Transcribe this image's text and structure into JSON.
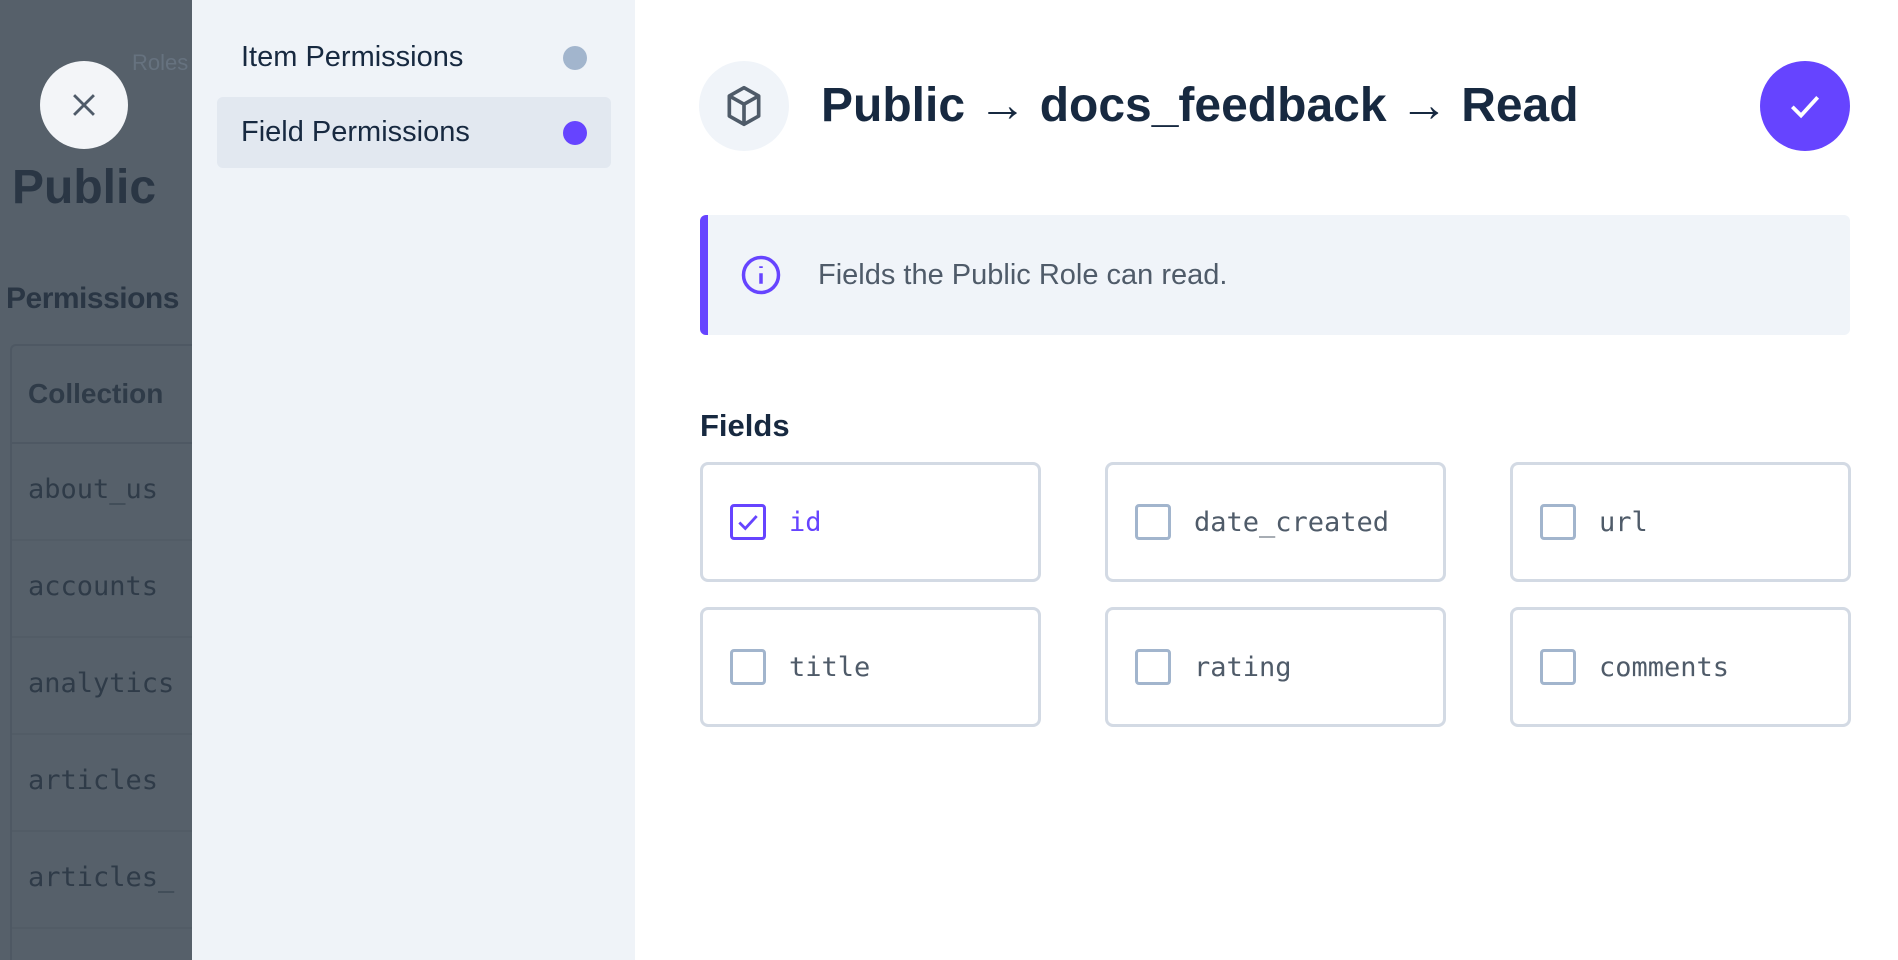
{
  "background_page": {
    "breadcrumb": "Roles",
    "title": "Public",
    "section": "Permissions",
    "table_header": "Collection",
    "rows": [
      "about_us",
      "accounts",
      "analytics",
      "articles",
      "articles_"
    ]
  },
  "sidebar": {
    "items": [
      {
        "label": "Item Permissions",
        "status_color": "#a2b5cd",
        "active": false
      },
      {
        "label": "Field Permissions",
        "status_color": "#6644ff",
        "active": true
      }
    ]
  },
  "header": {
    "icon": "cube-icon",
    "title": "Public → docs_feedback → Read",
    "save_icon": "check-icon"
  },
  "notice": {
    "icon": "info-icon",
    "text": "Fields the Public Role can read."
  },
  "fields": {
    "label": "Fields",
    "items": [
      {
        "name": "id",
        "checked": true
      },
      {
        "name": "date_created",
        "checked": false
      },
      {
        "name": "url",
        "checked": false
      },
      {
        "name": "title",
        "checked": false
      },
      {
        "name": "rating",
        "checked": false
      },
      {
        "name": "comments",
        "checked": false
      }
    ]
  },
  "colors": {
    "accent": "#6644ff",
    "sidebar_bg": "#eff3f8"
  }
}
